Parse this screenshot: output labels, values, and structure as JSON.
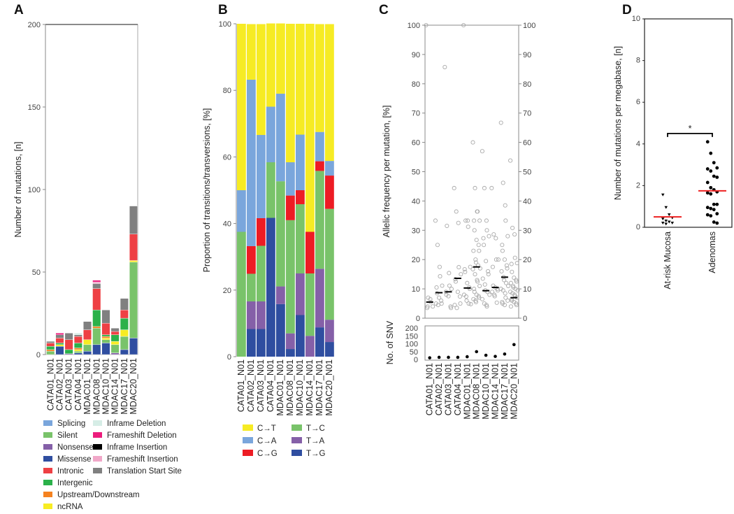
{
  "chart_data": [
    {
      "panel": "A",
      "type": "bar",
      "stacked": true,
      "ylabel": "Number of mutations, [n]",
      "ylim": [
        0,
        200
      ],
      "yticks": [
        "0",
        "50",
        "100",
        "150",
        "200"
      ],
      "categories": [
        "CATA01_N01",
        "CATA02_N01",
        "CATA03_N01",
        "CATA04_N01",
        "MDAC01_N01",
        "MDAC08_N01",
        "MDAC10_N01",
        "MDAC14_N01",
        "MDAC17_N01",
        "MDAC20_N01"
      ],
      "legend": [
        {
          "name": "Splicing",
          "color": "#7aa6dc"
        },
        {
          "name": "Silent",
          "color": "#79c36a"
        },
        {
          "name": "Nonsense",
          "color": "#8560a8"
        },
        {
          "name": "Missense",
          "color": "#2f4ea0"
        },
        {
          "name": "Intronic",
          "color": "#ee4044"
        },
        {
          "name": "Intergenic",
          "color": "#2bb14a"
        },
        {
          "name": "Upstream/Downstream",
          "color": "#f58220"
        },
        {
          "name": "ncRNA",
          "color": "#f7ec23"
        },
        {
          "name": "Inframe Deletion",
          "color": "#d6ede6"
        },
        {
          "name": "Frameshift Deletion",
          "color": "#ec1c7c"
        },
        {
          "name": "Inframe Insertion",
          "color": "#000000"
        },
        {
          "name": "Frameshift Insertion",
          "color": "#f1a7c8"
        },
        {
          "name": "Translation Start Site",
          "color": "#808080"
        }
      ],
      "stacks": [
        [
          [
            "Silent",
            2
          ],
          [
            "Upstream/Downstream",
            1
          ],
          [
            "Intergenic",
            2
          ],
          [
            "Intronic",
            2
          ],
          [
            "Translation Start Site",
            1
          ]
        ],
        [
          [
            "Missense",
            5
          ],
          [
            "ncRNA",
            1
          ],
          [
            "Intergenic",
            1
          ],
          [
            "Intronic",
            3
          ],
          [
            "Translation Start Site",
            2
          ],
          [
            "Frameshift Deletion",
            1
          ]
        ],
        [
          [
            "Nonsense",
            0.5
          ],
          [
            "Intergenic",
            2.5
          ],
          [
            "Intronic",
            6
          ],
          [
            "Translation Start Site",
            4
          ]
        ],
        [
          [
            "Missense",
            1
          ],
          [
            "Silent",
            1
          ],
          [
            "ncRNA",
            1
          ],
          [
            "Upstream/Downstream",
            1
          ],
          [
            "Intergenic",
            3
          ],
          [
            "Intronic",
            4
          ],
          [
            "Translation Start Site",
            1
          ],
          [
            "Inframe Deletion",
            1
          ]
        ],
        [
          [
            "Missense",
            2
          ],
          [
            "Silent",
            4
          ],
          [
            "ncRNA",
            3
          ],
          [
            "Intronic",
            6
          ],
          [
            "Translation Start Site",
            5
          ]
        ],
        [
          [
            "Missense",
            6
          ],
          [
            "Silent",
            10
          ],
          [
            "Upstream/Downstream",
            1
          ],
          [
            "Intergenic",
            10
          ],
          [
            "Intronic",
            13
          ],
          [
            "Translation Start Site",
            3
          ],
          [
            "Frameshift Insertion",
            1
          ],
          [
            "Frameshift Deletion",
            1
          ]
        ],
        [
          [
            "Missense",
            7
          ],
          [
            "Silent",
            2
          ],
          [
            "ncRNA",
            1
          ],
          [
            "Upstream/Downstream",
            1
          ],
          [
            "Intergenic",
            1
          ],
          [
            "Intronic",
            7
          ],
          [
            "Translation Start Site",
            8
          ]
        ],
        [
          [
            "Nonsense",
            1
          ],
          [
            "Silent",
            5
          ],
          [
            "ncRNA",
            2
          ],
          [
            "Intergenic",
            4
          ],
          [
            "Intronic",
            2
          ],
          [
            "Translation Start Site",
            2
          ]
        ],
        [
          [
            "Missense",
            3
          ],
          [
            "Silent",
            8
          ],
          [
            "ncRNA",
            4
          ],
          [
            "Intergenic",
            7
          ],
          [
            "Intronic",
            5
          ],
          [
            "Translation Start Site",
            7
          ]
        ],
        [
          [
            "Missense",
            10
          ],
          [
            "Silent",
            46
          ],
          [
            "ncRNA",
            1
          ],
          [
            "Intronic",
            16
          ],
          [
            "Translation Start Site",
            17
          ]
        ]
      ]
    },
    {
      "panel": "B",
      "type": "bar",
      "stacked": true,
      "ylabel": "Proportion of transitions/transversions, [%]",
      "ylim": [
        0,
        100
      ],
      "yticks": [
        "0",
        "20",
        "40",
        "60",
        "80",
        "100"
      ],
      "categories": [
        "CATA01_N01",
        "CATA02_N01",
        "CATA03_N01",
        "CATA04_N01",
        "MDAC01_N01",
        "MDAC08_N01",
        "MDAC10_N01",
        "MDAC14_N01",
        "MDAC17_N01",
        "MDAC20_N01"
      ],
      "legend": [
        {
          "name": "C→T",
          "color": "#f6eb24"
        },
        {
          "name": "C→A",
          "color": "#7aa6dc"
        },
        {
          "name": "C→G",
          "color": "#ed1c24"
        },
        {
          "name": "T→C",
          "color": "#79c36a"
        },
        {
          "name": "T→A",
          "color": "#8560a8"
        },
        {
          "name": "T→G",
          "color": "#2f4ea0"
        }
      ],
      "stack_order": [
        "T→G",
        "T→A",
        "T→C",
        "C→G",
        "C→A",
        "C→T"
      ],
      "series": [
        {
          "name": "T→G",
          "values": [
            0,
            8.3,
            8.3,
            41.7,
            15.8,
            2.3,
            12.5,
            0,
            8.8,
            4.4
          ]
        },
        {
          "name": "T→A",
          "values": [
            0,
            8.3,
            8.3,
            0,
            5.3,
            4.7,
            12.5,
            6.25,
            17.6,
            6.7
          ]
        },
        {
          "name": "T→C",
          "values": [
            37.5,
            8.3,
            16.7,
            16.7,
            31.6,
            34,
            20.8,
            18.75,
            29.4,
            33.3
          ]
        },
        {
          "name": "C→G",
          "values": [
            0,
            8.3,
            8.3,
            0,
            0,
            7.4,
            4.2,
            12.5,
            2.9,
            10
          ]
        },
        {
          "name": "C→A",
          "values": [
            12.5,
            50,
            25,
            16.7,
            26.3,
            10,
            16.7,
            0,
            8.8,
            4.4
          ]
        },
        {
          "name": "C→T",
          "values": [
            50,
            16.7,
            33.3,
            25,
            21.1,
            41.6,
            33.3,
            62.5,
            32.4,
            41.1
          ]
        }
      ]
    },
    {
      "panel": "C",
      "type": "scatter",
      "ylabel": "Allelic frequency per mutation, [%]",
      "ylim": [
        0,
        100
      ],
      "yticks": [
        "0",
        "10",
        "20",
        "30",
        "40",
        "50",
        "60",
        "70",
        "80",
        "90",
        "100"
      ],
      "categories": [
        "CATA01_N01",
        "CATA02_N01",
        "CATA03_N01",
        "CATA04_N01",
        "MDAC01_N01",
        "MDAC08_N01",
        "MDAC10_N01",
        "MDAC14_N01",
        "MDAC17_N01",
        "MDAC20_N01"
      ],
      "points": [
        [
          100,
          7,
          6.5,
          5.5,
          4,
          3.5,
          4
        ],
        [
          33.3,
          25,
          17.5,
          14.3,
          11.1,
          10.5,
          8.5,
          7,
          6,
          5,
          5,
          4.5
        ],
        [
          85.7,
          31.5,
          15.4,
          11.1,
          10,
          9,
          8,
          7.5,
          4,
          3.5
        ],
        [
          44.4,
          36.4,
          32.5,
          17.4,
          15,
          13.3,
          12.5,
          9,
          7.4,
          5,
          4.5,
          3.5
        ],
        [
          100,
          33.3,
          33.3,
          31.2,
          17.5,
          16.7,
          15.8,
          12,
          10.5,
          10,
          8,
          7.4,
          6,
          5,
          4.8
        ],
        [
          60,
          44.4,
          36.4,
          36.4,
          33.3,
          33.3,
          30,
          26.7,
          25,
          23,
          23,
          20,
          19,
          18,
          17,
          16.7,
          15,
          13,
          12.5,
          11,
          10,
          9,
          8,
          7.5,
          7,
          6.5,
          6,
          5.5
        ],
        [
          57,
          44.4,
          33.3,
          30,
          28,
          27.3,
          25,
          19.5,
          16,
          15,
          13.5,
          11.5,
          9.5,
          9,
          8,
          6.5,
          5,
          4.5,
          4
        ],
        [
          44.4,
          28.6,
          27.3,
          20,
          20,
          17.5,
          11.1,
          10.5,
          10,
          9.5,
          9,
          8,
          7.5,
          5.3
        ],
        [
          66.7,
          46.2,
          38.5,
          33.3,
          28,
          25,
          23,
          20,
          18,
          17,
          16,
          14,
          13,
          12,
          11,
          10,
          9.5,
          8.5,
          7,
          6,
          5.5,
          5,
          4.5
        ],
        [
          53.8,
          30.8,
          28.6,
          20.6,
          18.8,
          18.5,
          15.8,
          13.8,
          13,
          12.5,
          12,
          11,
          10.5,
          10,
          9.5,
          9,
          8.5,
          8,
          7.5,
          7,
          6.5,
          6,
          5.5,
          5,
          4.5,
          4
        ]
      ],
      "medians": [
        5.5,
        8.7,
        9,
        13.6,
        10.3,
        17.5,
        9.4,
        10.5,
        14,
        7
      ],
      "subplot": {
        "ylabel": "No. of SNV",
        "ylim": [
          0,
          200
        ],
        "yticks": [
          "0",
          "50",
          "100",
          "150",
          "200"
        ],
        "values": [
          6,
          9,
          9,
          9,
          13,
          45,
          22,
          15,
          30,
          90
        ]
      }
    },
    {
      "panel": "D",
      "type": "scatter",
      "ylabel": "Number of mutations per megabase, [n]",
      "ylim": [
        0,
        10
      ],
      "yticks": [
        "0",
        "2",
        "4",
        "6",
        "8",
        "10"
      ],
      "categories": [
        "At-risk Mucosa",
        "Adenomas"
      ],
      "groups": [
        {
          "name": "At-risk Mucosa",
          "marker": "triangle",
          "values": [
            1.55,
            0.95,
            0.6,
            0.45,
            0.4,
            0.3,
            0.25,
            0.2,
            0.2,
            0.15
          ],
          "median": 0.5
        },
        {
          "name": "Adenomas",
          "marker": "circle",
          "values": [
            4.1,
            3.55,
            3.1,
            2.85,
            2.8,
            2.7,
            2.45,
            2.4,
            2.15,
            1.9,
            1.8,
            1.7,
            1.65,
            1.6,
            1.1,
            1.1,
            0.95,
            0.9,
            0.85,
            0.65,
            0.6,
            0.55,
            0.25,
            0.2
          ],
          "median": 1.75
        }
      ],
      "significance": "*",
      "median_color": "#ee2222"
    }
  ]
}
